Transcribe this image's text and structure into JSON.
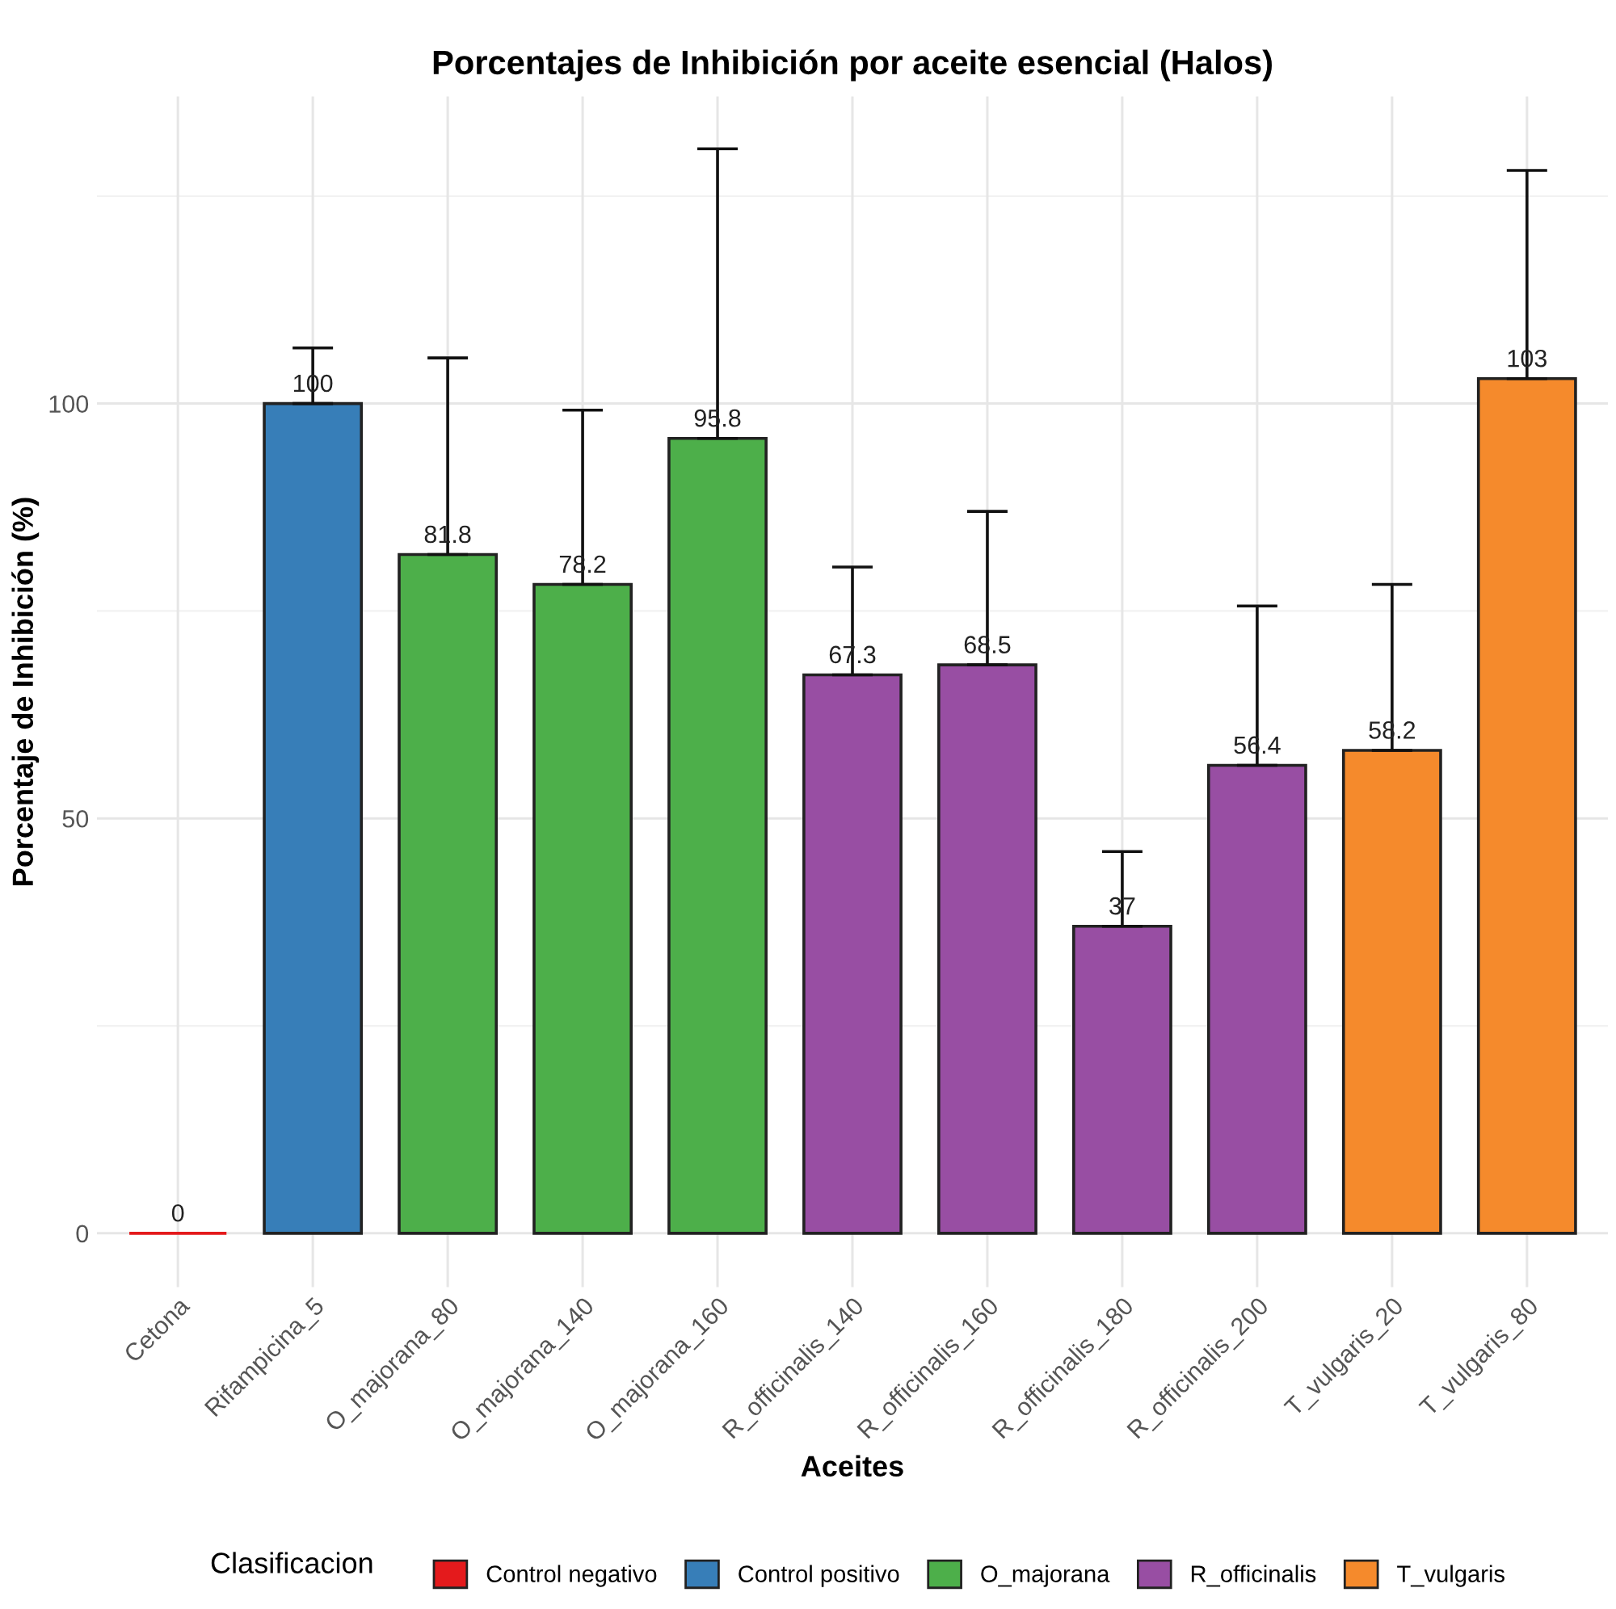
{
  "chart_data": {
    "type": "bar",
    "title": "Porcentajes de Inhibición por aceite esencial (Halos)",
    "xlabel": "Aceites",
    "ylabel": "Porcentaje de Inhibición (%)",
    "legend_title": "Clasificacion",
    "categories": [
      "Cetona",
      "Rifampicina_5",
      "O_majorana_80",
      "O_majorana_140",
      "O_majorana_160",
      "R_officinalis_140",
      "R_officinalis_160",
      "R_officinalis_180",
      "R_officinalis_200",
      "T_vulgaris_20",
      "T_vulgaris_80"
    ],
    "series": [
      {
        "name": "Control negativo",
        "color": "#e41a1c",
        "values": [
          0,
          null,
          null,
          null,
          null,
          null,
          null,
          null,
          null,
          null,
          null
        ],
        "errors": [
          null,
          null,
          null,
          null,
          null,
          null,
          null,
          null,
          null,
          null,
          null
        ]
      },
      {
        "name": "Control positivo",
        "color": "#377eb8",
        "values": [
          null,
          100,
          null,
          null,
          null,
          null,
          null,
          null,
          null,
          null,
          null
        ],
        "errors": [
          null,
          [
            100,
            106.7
          ],
          null,
          null,
          null,
          null,
          null,
          null,
          null,
          null,
          null
        ]
      },
      {
        "name": "O_majorana",
        "color": "#4daf4a",
        "values": [
          null,
          null,
          81.8,
          78.2,
          95.8,
          null,
          null,
          null,
          null,
          null,
          null
        ],
        "errors": [
          null,
          null,
          [
            81.8,
            105.5
          ],
          [
            78.2,
            99.2
          ],
          [
            95.8,
            130.7
          ],
          null,
          null,
          null,
          null,
          null,
          null
        ]
      },
      {
        "name": "R_officinalis",
        "color": "#984ea3",
        "values": [
          null,
          null,
          null,
          null,
          null,
          67.3,
          68.5,
          37,
          56.4,
          null,
          null
        ],
        "errors": [
          null,
          null,
          null,
          null,
          null,
          [
            67.3,
            80.3
          ],
          [
            68.5,
            87.0
          ],
          [
            37,
            46.0
          ],
          [
            56.4,
            75.6
          ],
          null,
          null
        ]
      },
      {
        "name": "T_vulgaris",
        "color": "#f58a2c",
        "values": [
          null,
          null,
          null,
          null,
          null,
          null,
          null,
          null,
          null,
          58.2,
          103
        ],
        "errors": [
          null,
          null,
          null,
          null,
          null,
          null,
          null,
          null,
          null,
          [
            58.2,
            78.2
          ],
          [
            103,
            128.1
          ]
        ]
      }
    ],
    "ylim": [
      -6.5,
      137
    ],
    "yticks": [
      0,
      50,
      100
    ],
    "grid": true,
    "legend": "bottom",
    "data_labels": true
  }
}
